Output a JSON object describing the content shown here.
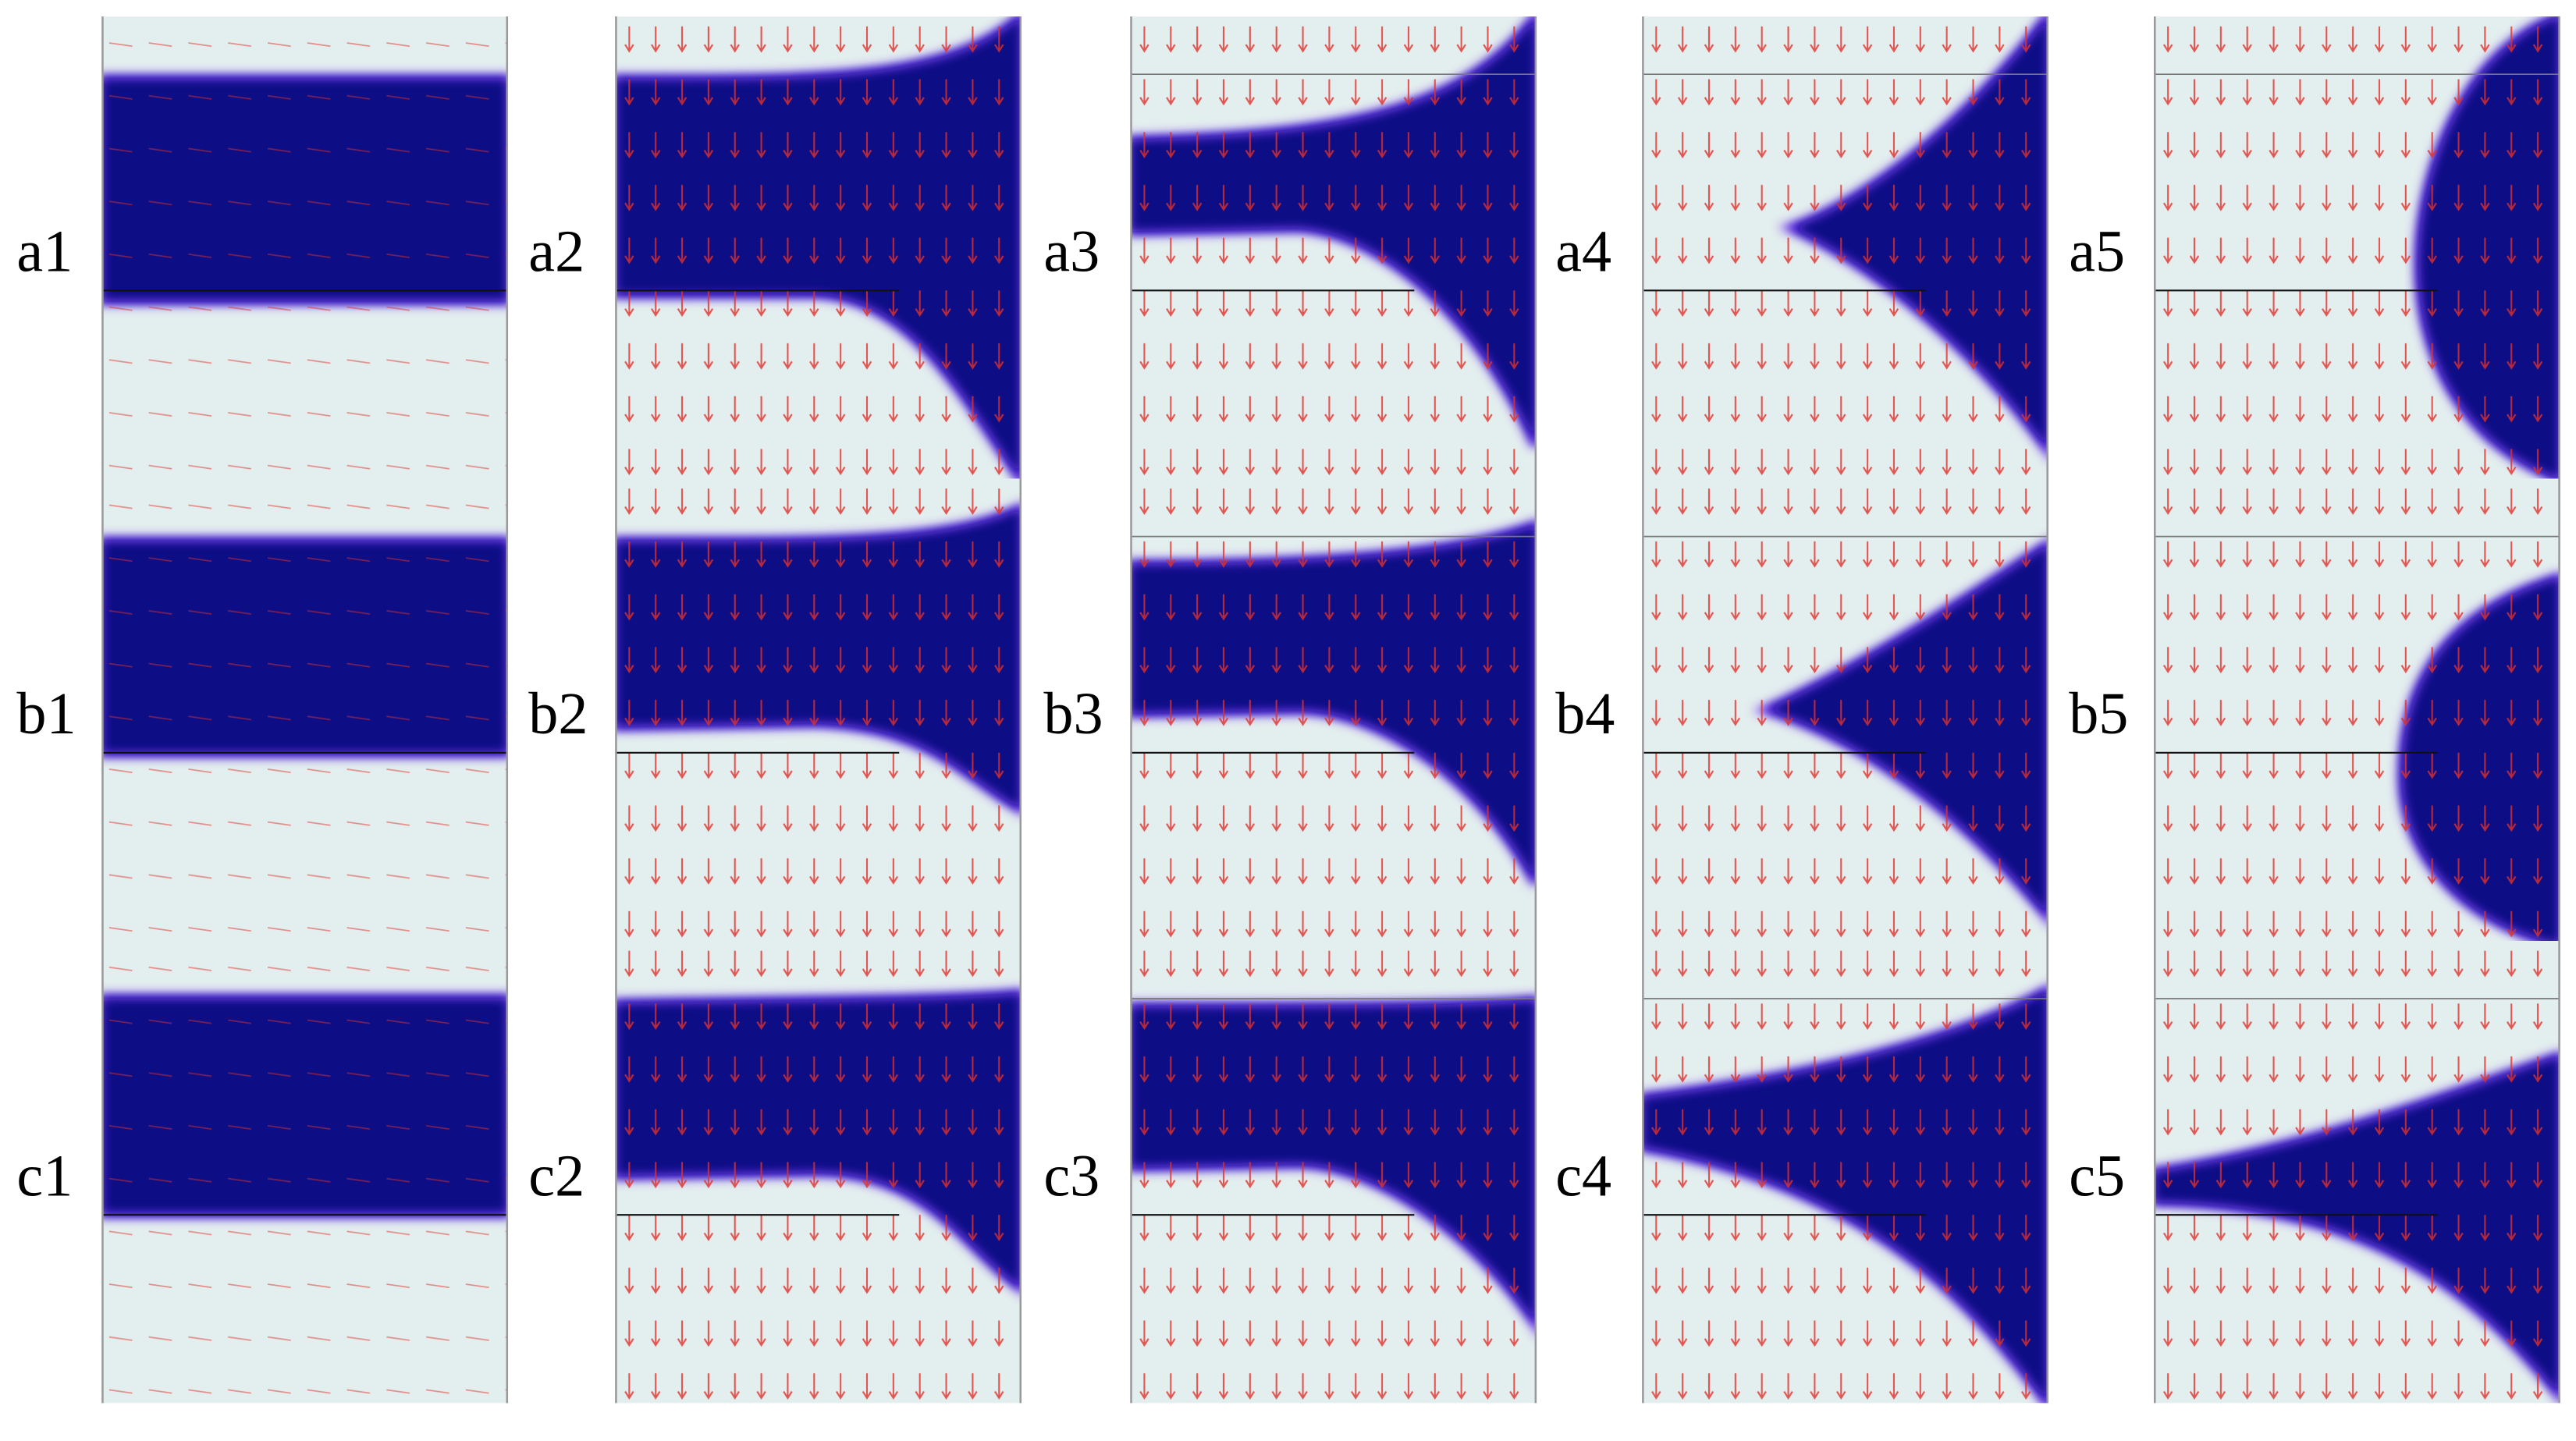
{
  "labels": [
    [
      "a1",
      "a2",
      "a3",
      "a4",
      "a5"
    ],
    [
      "b1",
      "b2",
      "b3",
      "b4",
      "b5"
    ],
    [
      "c1",
      "c2",
      "c3",
      "c4",
      "c5"
    ]
  ]
}
